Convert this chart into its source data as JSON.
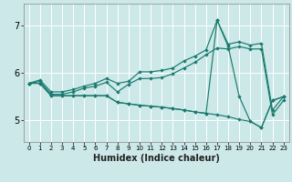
{
  "xlabel": "Humidex (Indice chaleur)",
  "bg_color": "#cce8e8",
  "grid_color": "#ffffff",
  "line_color": "#1a7a6e",
  "xlim": [
    -0.5,
    23.5
  ],
  "ylim": [
    4.55,
    7.45
  ],
  "yticks": [
    5,
    6,
    7
  ],
  "xticks": [
    0,
    1,
    2,
    3,
    4,
    5,
    6,
    7,
    8,
    9,
    10,
    11,
    12,
    13,
    14,
    15,
    16,
    17,
    18,
    19,
    20,
    21,
    22,
    23
  ],
  "series": [
    {
      "x": [
        0,
        1,
        2,
        3,
        4,
        5,
        6,
        7,
        8,
        9,
        10,
        11,
        12,
        13,
        14,
        15,
        16,
        17,
        18,
        19,
        20,
        21,
        22,
        23
      ],
      "y": [
        5.78,
        5.85,
        5.6,
        5.6,
        5.65,
        5.72,
        5.78,
        5.88,
        5.78,
        5.82,
        6.02,
        6.02,
        6.05,
        6.1,
        6.25,
        6.35,
        6.48,
        7.1,
        6.6,
        6.65,
        6.58,
        6.62,
        5.22,
        5.5
      ]
    },
    {
      "x": [
        0,
        1,
        2,
        3,
        4,
        5,
        6,
        7,
        8,
        9,
        10,
        11,
        12,
        13,
        14,
        15,
        16,
        17,
        18,
        19,
        20,
        21,
        22,
        23
      ],
      "y": [
        5.78,
        5.82,
        5.55,
        5.55,
        5.6,
        5.68,
        5.72,
        5.8,
        5.6,
        5.76,
        5.88,
        5.88,
        5.9,
        5.98,
        6.1,
        6.22,
        6.38,
        6.52,
        6.5,
        6.55,
        6.5,
        6.5,
        5.12,
        5.42
      ]
    },
    {
      "x": [
        0,
        1,
        2,
        3,
        4,
        5,
        6,
        7,
        8,
        9,
        10,
        11,
        12,
        13,
        14,
        15,
        16,
        17,
        18,
        19,
        20,
        21,
        22,
        23
      ],
      "y": [
        5.78,
        5.78,
        5.52,
        5.52,
        5.52,
        5.52,
        5.52,
        5.52,
        5.38,
        5.35,
        5.32,
        5.3,
        5.28,
        5.25,
        5.22,
        5.18,
        5.15,
        5.12,
        5.08,
        5.02,
        4.98,
        4.85,
        5.42,
        5.5
      ]
    },
    {
      "x": [
        0,
        1,
        2,
        3,
        4,
        5,
        6,
        7,
        8,
        9,
        10,
        11,
        12,
        13,
        14,
        15,
        16,
        17,
        18,
        19,
        20,
        21,
        22,
        23
      ],
      "y": [
        5.78,
        5.78,
        5.52,
        5.52,
        5.52,
        5.52,
        5.52,
        5.52,
        5.38,
        5.35,
        5.32,
        5.3,
        5.28,
        5.25,
        5.22,
        5.18,
        5.15,
        7.1,
        6.55,
        5.5,
        4.98,
        4.85,
        5.42,
        5.5
      ]
    }
  ]
}
